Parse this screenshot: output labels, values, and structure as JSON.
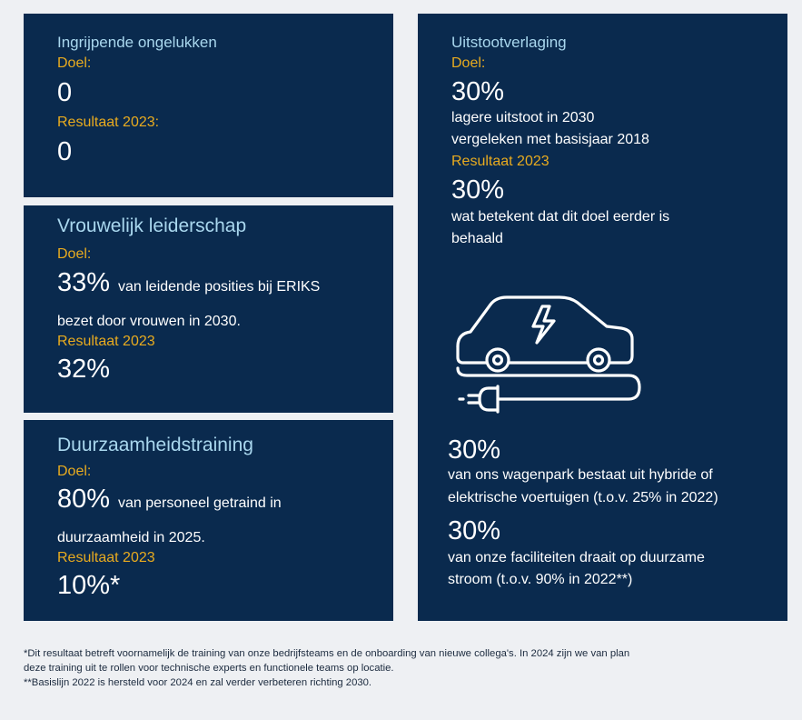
{
  "panels": {
    "accidents": {
      "title": "Ingrijpende ongelukken",
      "goal_label": "Doel:",
      "goal_value": "0",
      "result_label": "Resultaat 2023:",
      "result_value": "0"
    },
    "leadership": {
      "title": "Vrouwelijk leiderschap",
      "goal_label": "Doel:",
      "goal_value": "33%",
      "goal_text_1": "van leidende posities bij ERIKS",
      "goal_text_2": "bezet door vrouwen in 2030.",
      "result_label": "Resultaat 2023",
      "result_value": "32%"
    },
    "training": {
      "title": "Duurzaamheidstraining",
      "goal_label": "Doel:",
      "goal_value": "80%",
      "goal_text_1": "van personeel getraind in",
      "goal_text_2": "duurzaamheid in 2025.",
      "result_label": "Resultaat 2023",
      "result_value": "10%*"
    },
    "emissions": {
      "title": "Uitstootverlaging",
      "goal_label": "Doel:",
      "goal_value": "30%",
      "goal_text_1": "lagere uitstoot in 2030",
      "goal_text_2": "vergeleken met basisjaar 2018",
      "result_label": "Resultaat 2023",
      "result_value": "30%",
      "result_text_1": "wat betekent dat dit doel eerder is",
      "result_text_2": "behaald",
      "icon": "electric-car-icon",
      "fleet_value": "30%",
      "fleet_text_1": "van ons wagenpark bestaat uit hybride of",
      "fleet_text_2": "elektrische voertuigen (t.o.v. 25% in 2022)",
      "facilities_value": "30%",
      "facilities_text_1": "van onze faciliteiten draait op duurzame",
      "facilities_text_2": "stroom (t.o.v. 90% in 2022**)"
    }
  },
  "footnotes": {
    "line1": "*Dit resultaat betreft voornamelijk de training van onze bedrijfsteams en de onboarding van nieuwe collega's. In 2024 zijn we van plan",
    "line2": "deze training uit te rollen voor technische experts en functionele teams op locatie.",
    "line3": "**Basislijn 2022 is hersteld voor 2024 en zal verder verbeteren richting 2030."
  },
  "colors": {
    "panel_bg": "#0a2a4e",
    "title": "#a9d7ee",
    "label": "#e8ab1f",
    "page_bg": "#eef0f3"
  }
}
